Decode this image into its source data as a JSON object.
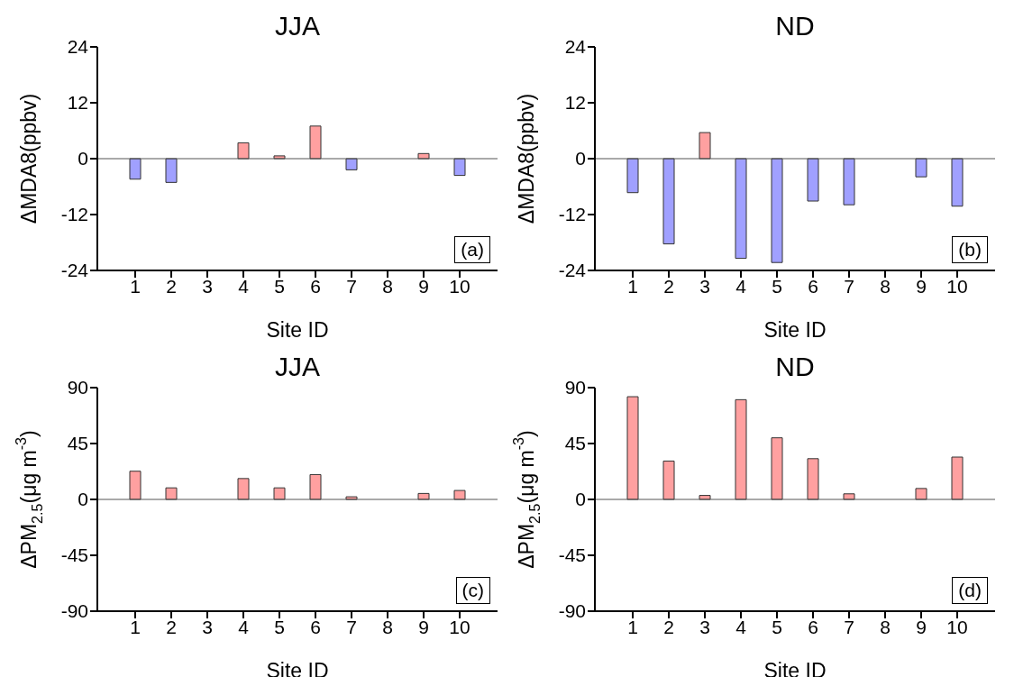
{
  "chart_data": [
    {
      "type": "bar",
      "title": "JJA",
      "xlabel": "Site ID",
      "ylabel": "ΔMDA8(ppbv)",
      "categories": [
        "1",
        "2",
        "3",
        "4",
        "5",
        "6",
        "7",
        "8",
        "9",
        "10"
      ],
      "values": [
        -4.4,
        -5.1,
        null,
        3.4,
        0.6,
        7.0,
        -2.4,
        null,
        1.1,
        -3.6
      ],
      "colors": [
        "#a0a0ff",
        "#a0a0ff",
        "#a0a0ff",
        "#ffa0a0",
        "#ffa0a0",
        "#ffa0a0",
        "#a0a0ff",
        "#a0a0ff",
        "#ffa0a0",
        "#a0a0ff"
      ],
      "ylim": [
        -24,
        24
      ],
      "yticks": [
        -24,
        -12,
        0,
        12,
        24
      ],
      "ref_lines": [
        {
          "axis": "y",
          "value": 0
        }
      ],
      "annotations": [
        "(a)"
      ]
    },
    {
      "type": "bar",
      "title": "ND",
      "xlabel": "Site ID",
      "ylabel": "ΔMDA8(ppbv)",
      "categories": [
        "1",
        "2",
        "3",
        "4",
        "5",
        "6",
        "7",
        "8",
        "9",
        "10"
      ],
      "values": [
        -7.3,
        -18.3,
        5.6,
        -21.4,
        -22.3,
        -9.1,
        -9.9,
        null,
        -3.9,
        -10.2
      ],
      "colors": [
        "#a0a0ff",
        "#a0a0ff",
        "#ffa0a0",
        "#a0a0ff",
        "#a0a0ff",
        "#a0a0ff",
        "#a0a0ff",
        "#a0a0ff",
        "#a0a0ff",
        "#a0a0ff"
      ],
      "ylim": [
        -24,
        24
      ],
      "yticks": [
        -24,
        -12,
        0,
        12,
        24
      ],
      "ref_lines": [
        {
          "axis": "y",
          "value": 0
        }
      ],
      "annotations": [
        "(b)"
      ]
    },
    {
      "type": "bar",
      "title": "JJA",
      "xlabel": "Site ID",
      "ylabel": "ΔPM$_{2.5}$(μg m$^{-3}$)",
      "categories": [
        "1",
        "2",
        "3",
        "4",
        "5",
        "6",
        "7",
        "8",
        "9",
        "10"
      ],
      "values": [
        22.7,
        9.3,
        null,
        16.8,
        9.3,
        20,
        2.1,
        null,
        4.8,
        7.2
      ],
      "colors": [
        "#ffa0a0",
        "#ffa0a0",
        "#ffa0a0",
        "#ffa0a0",
        "#ffa0a0",
        "#ffa0a0",
        "#ffa0a0",
        "#ffa0a0",
        "#ffa0a0",
        "#ffa0a0"
      ],
      "ylim": [
        -90,
        90
      ],
      "yticks": [
        -90,
        -45,
        0,
        45,
        90
      ],
      "ref_lines": [
        {
          "axis": "y",
          "value": 0
        }
      ],
      "annotations": [
        "(c)"
      ]
    },
    {
      "type": "bar",
      "title": "ND",
      "xlabel": "Site ID",
      "ylabel": "ΔPM$_{2.5}$(μg m$^{-3}$)",
      "categories": [
        "1",
        "2",
        "3",
        "4",
        "5",
        "6",
        "7",
        "8",
        "9",
        "10"
      ],
      "values": [
        82.7,
        30.9,
        3.2,
        80.3,
        49.6,
        32.8,
        4.5,
        null,
        8.8,
        34.1
      ],
      "colors": [
        "#ffa0a0",
        "#ffa0a0",
        "#ffa0a0",
        "#ffa0a0",
        "#ffa0a0",
        "#ffa0a0",
        "#ffa0a0",
        "#ffa0a0",
        "#ffa0a0",
        "#ffa0a0"
      ],
      "ylim": [
        -90,
        90
      ],
      "yticks": [
        -90,
        -45,
        0,
        45,
        90
      ],
      "ref_lines": [
        {
          "axis": "y",
          "value": 0
        }
      ],
      "annotations": [
        "(d)"
      ]
    }
  ]
}
